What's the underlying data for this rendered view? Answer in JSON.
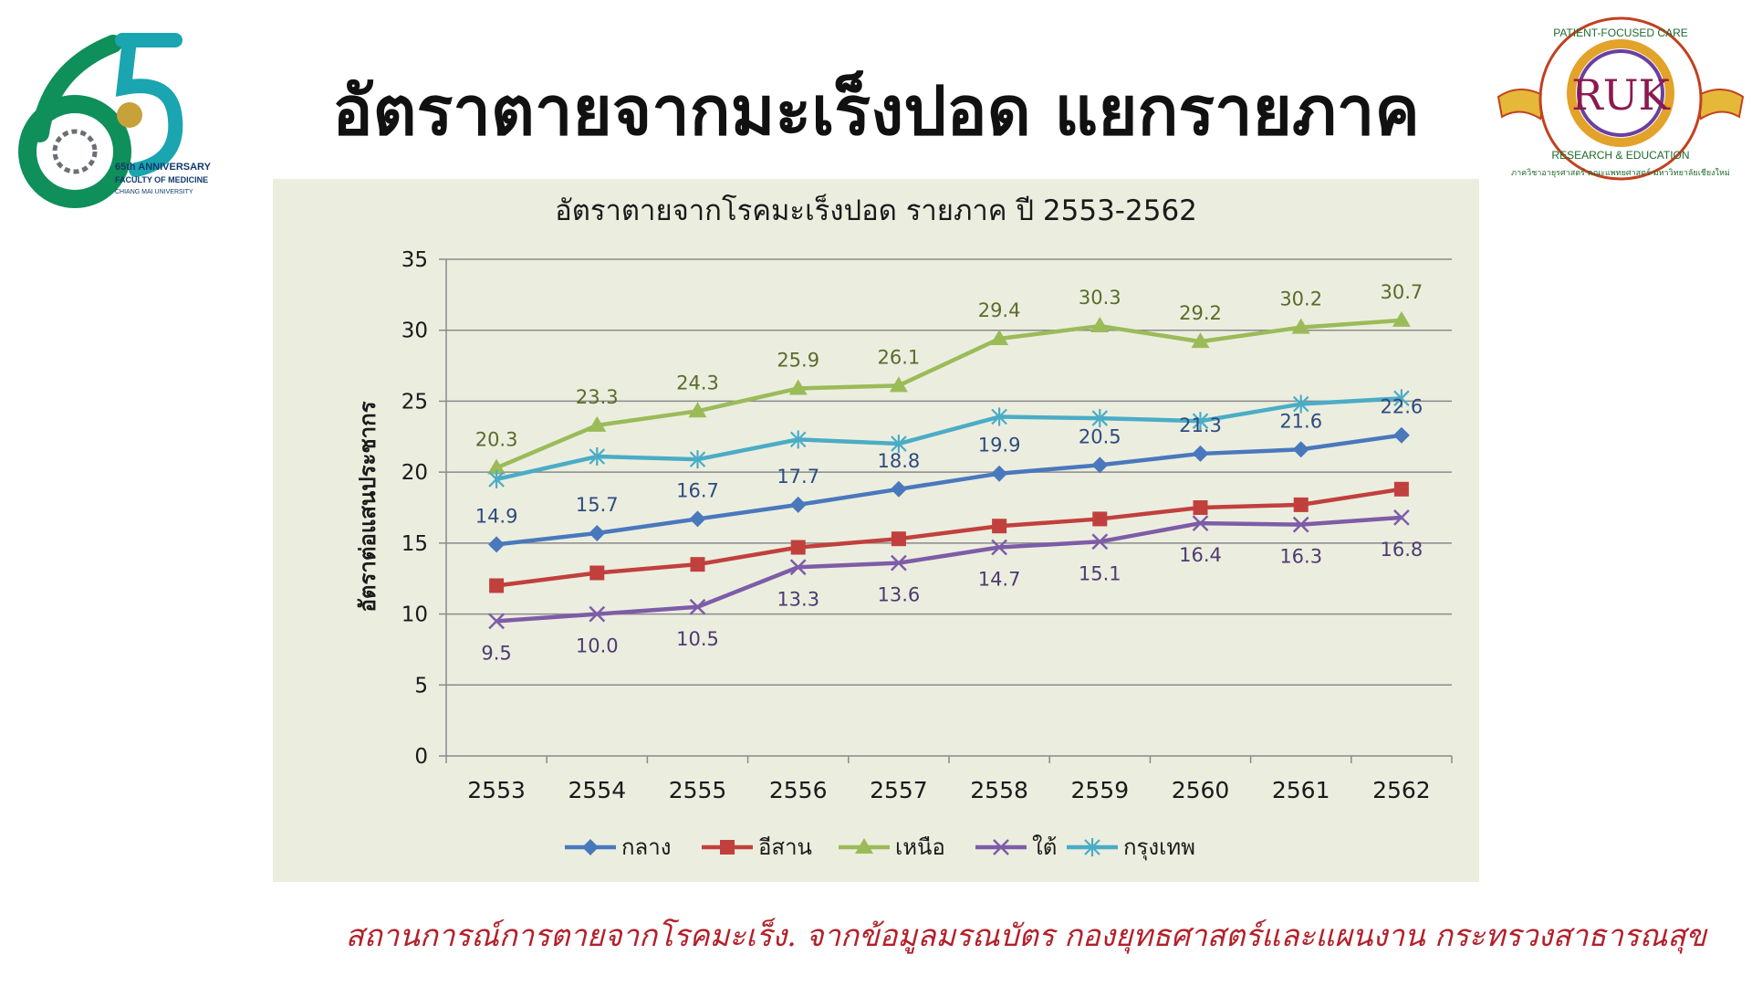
{
  "slide": {
    "title": "อัตราตายจากมะเร็งปอด แยกรายภาค",
    "source_note": "สถานการณ์การตายจากโรคมะเร็ง. จากข้อมูลมรณบัตร กองยุทธศาสตร์และแผนงาน กระทรวงสาธารณสุข"
  },
  "logos": {
    "left": {
      "number": "65",
      "anniversary": "65th ANNIVERSARY",
      "faculty": "FACULTY OF MEDICINE",
      "university": "CHIANG MAI UNIVERSITY"
    },
    "right": {
      "top_text": "PATIENT-FOCUSED CARE",
      "middle_text": "RESEARCH & EDUCATION",
      "monogram": "RUK",
      "bottom_text": "ภาควิชาอายุรศาสตร์ คณะแพทยศาสตร์ มหาวิทยาลัยเชียงใหม่"
    }
  },
  "chart_data": {
    "type": "line",
    "title": "อัตราตายจากโรคมะเร็งปอด รายภาค ปี 2553-2562",
    "xlabel": "",
    "ylabel": "อัตราต่อแสนประชากร",
    "categories": [
      "2553",
      "2554",
      "2555",
      "2556",
      "2557",
      "2558",
      "2559",
      "2560",
      "2561",
      "2562"
    ],
    "ylim": [
      0,
      35
    ],
    "yticks": [
      0,
      5,
      10,
      15,
      20,
      25,
      30,
      35
    ],
    "grid": true,
    "legend_position": "bottom",
    "series": [
      {
        "name": "กลาง",
        "color": "#4a78bd",
        "marker": "diamond",
        "label_color": "#2f4a80",
        "label_pos": "above",
        "values": [
          14.9,
          15.7,
          16.7,
          17.7,
          18.8,
          19.9,
          20.5,
          21.3,
          21.6,
          22.6
        ],
        "labels": [
          "14.9",
          "15.7",
          "16.7",
          "17.7",
          "18.8",
          "19.9",
          "20.5",
          "21.3",
          "21.6",
          "22.6"
        ]
      },
      {
        "name": "อีสาน",
        "color": "#c1403d",
        "marker": "square",
        "values": [
          12.0,
          12.9,
          13.5,
          14.7,
          15.3,
          16.2,
          16.7,
          17.5,
          17.7,
          18.8
        ]
      },
      {
        "name": "เหนือ",
        "color": "#9bbb59",
        "marker": "triangle",
        "label_color": "#5b6b2a",
        "label_pos": "above",
        "values": [
          20.3,
          23.3,
          24.3,
          25.9,
          26.1,
          29.4,
          30.3,
          29.2,
          30.2,
          30.7
        ],
        "labels": [
          "20.3",
          "23.3",
          "24.3",
          "25.9",
          "26.1",
          "29.4",
          "30.3",
          "29.2",
          "30.2",
          "30.7"
        ]
      },
      {
        "name": "ใต้",
        "color": "#7e5ca8",
        "marker": "x",
        "label_color": "#4e3a72",
        "label_pos": "below",
        "values": [
          9.5,
          10.0,
          10.5,
          13.3,
          13.6,
          14.7,
          15.1,
          16.4,
          16.3,
          16.8
        ],
        "labels": [
          "9.5",
          "10.0",
          "10.5",
          "13.3",
          "13.6",
          "14.7",
          "15.1",
          "16.4",
          "16.3",
          "16.8"
        ]
      },
      {
        "name": "กรุงเทพ",
        "color": "#4bacc6",
        "marker": "star",
        "values": [
          19.5,
          21.1,
          20.9,
          22.3,
          22.0,
          23.9,
          23.8,
          23.6,
          24.8,
          25.2
        ]
      }
    ]
  }
}
